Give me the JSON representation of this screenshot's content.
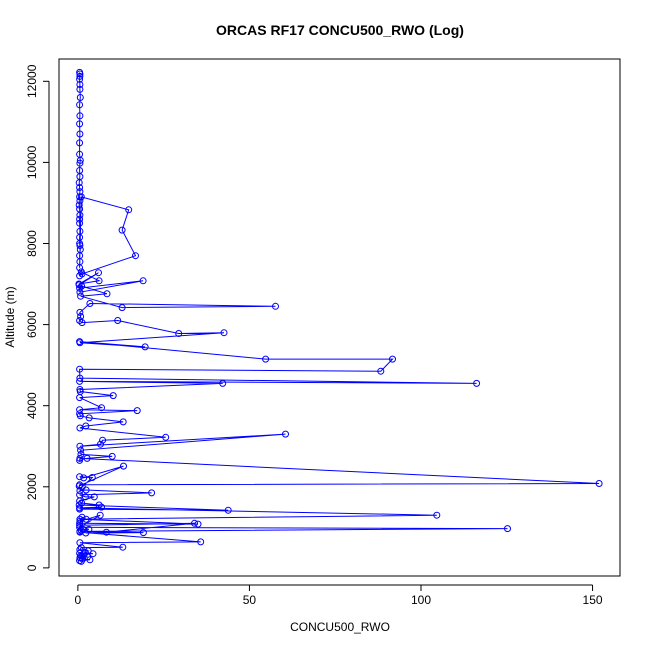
{
  "chart_data": {
    "type": "line",
    "title": "ORCAS RF17 CONCU500_RWO (Log)",
    "xlabel": "CONCU500_RWO",
    "ylabel": "Altitude (m)",
    "xlim": [
      -5.5,
      158
    ],
    "ylim": [
      -200,
      12550
    ],
    "xticks": [
      0,
      50,
      100,
      150
    ],
    "yticks": [
      0,
      2000,
      4000,
      6000,
      8000,
      10000,
      12000
    ],
    "grid": false,
    "series_color": "#0000ff",
    "series": [
      {
        "x": [
          0.5,
          0.6,
          0.6,
          0.5,
          0.6,
          0.6,
          0.7,
          0.5,
          0.6,
          0.5,
          0.6,
          0.5,
          0.5,
          0.7,
          0.6,
          0.5,
          0.6,
          0.4,
          0.5,
          0.6,
          0.5,
          0.6,
          0.4,
          0.5,
          0.6,
          0.5,
          0.5,
          0.6,
          0.5,
          0.5,
          0.6,
          0.7,
          0.5,
          0.6,
          0.5,
          1.0,
          14.8,
          12.9,
          16.8,
          1.2,
          0.5,
          1.0,
          6.2,
          0.3,
          6.0,
          0.4,
          0.6,
          19.0,
          0.5,
          1.1,
          8.5,
          0.8,
          12.9,
          57.6,
          3.5,
          0.6,
          0.8,
          0.5,
          1.2,
          11.6,
          29.4,
          42.6,
          0.6,
          19.6,
          0.5,
          54.7,
          91.7,
          88.3,
          0.5,
          0.6,
          116.2,
          0.5,
          42.2,
          0.6,
          0.7,
          10.3,
          0.5,
          6.9,
          0.5,
          17.3,
          0.5,
          0.7,
          3.3,
          13.2,
          2.3,
          0.6,
          25.6,
          7.2,
          6.6,
          0.6,
          60.5,
          0.8,
          0.9,
          10.0,
          2.7,
          0.5,
          0.6,
          151.9,
          0.5,
          0.4,
          13.3,
          1.7,
          0.5,
          4.2,
          1.3,
          0.6,
          2.4,
          21.5,
          0.5,
          2.2,
          4.8,
          0.5,
          1.1,
          6.2,
          0.4,
          43.8,
          0.5,
          6.9,
          0.5,
          104.6,
          0.6,
          35.0,
          0.5,
          1.2,
          2.4,
          0.6,
          6.5,
          0.5,
          125.2,
          0.6,
          19.1,
          2.3,
          8.3,
          34.0,
          0.5,
          3.2,
          1.5,
          1.0,
          0.6,
          35.8,
          0.6,
          13.1,
          1.0,
          0.6,
          3.0,
          2.2,
          4.4,
          0.5,
          1.8,
          0.8,
          1.2,
          2.8,
          0.6,
          1.4,
          3.5,
          0.5,
          1.0
        ],
        "y": [
          12220,
          12180,
          12120,
          12050,
          11920,
          11800,
          11600,
          11420,
          11150,
          10950,
          10700,
          10480,
          10200,
          10050,
          9980,
          9800,
          9650,
          9500,
          9380,
          9280,
          9150,
          9050,
          8950,
          8850,
          8700,
          8600,
          8500,
          8300,
          8150,
          8000,
          7950,
          7850,
          7700,
          7550,
          7400,
          9150,
          8830,
          8330,
          7700,
          7250,
          7200,
          7300,
          7080,
          7000,
          7280,
          6980,
          6800,
          7080,
          6900,
          6950,
          6760,
          6700,
          6420,
          6450,
          6520,
          6300,
          6200,
          6100,
          6050,
          6100,
          5780,
          5800,
          5550,
          5450,
          5580,
          5150,
          5150,
          4850,
          4900,
          4680,
          4550,
          4600,
          4550,
          4400,
          4350,
          4250,
          4200,
          3950,
          3900,
          3880,
          3800,
          3750,
          3700,
          3600,
          3500,
          3450,
          3220,
          3150,
          3050,
          3000,
          3300,
          2900,
          2800,
          2750,
          2700,
          2650,
          2700,
          2080,
          2050,
          2020,
          2510,
          2220,
          2250,
          2230,
          2000,
          1900,
          1920,
          1850,
          1800,
          1750,
          1750,
          1650,
          1600,
          1550,
          1550,
          1420,
          1450,
          1500,
          1480,
          1300,
          1200,
          1080,
          1100,
          1250,
          1200,
          1150,
          1300,
          1000,
          970,
          900,
          870,
          860,
          880,
          1100,
          1050,
          950,
          950,
          920,
          880,
          640,
          620,
          510,
          500,
          450,
          420,
          380,
          350,
          360,
          320,
          300,
          290,
          270,
          250,
          220,
          200,
          180,
          160
        ]
      }
    ]
  }
}
